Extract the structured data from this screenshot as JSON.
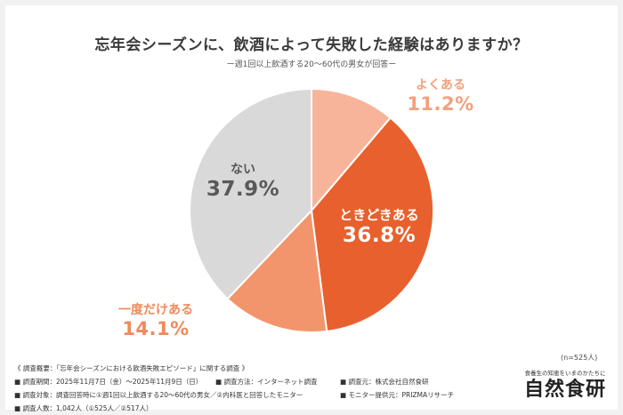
{
  "chart_data": {
    "type": "pie",
    "title": "忘年会シーズンに、飲酒によって失敗した経験はありますか？",
    "subtitle": "ー週1回以上飲酒する20〜60代の男女が回答ー",
    "slices": [
      {
        "label": "よくある",
        "value": 11.2,
        "value_text": "11.2%",
        "color": "#f8b49a"
      },
      {
        "label": "ときどきある",
        "value": 36.8,
        "value_text": "36.8%",
        "color": "#e8602e"
      },
      {
        "label": "一度だけある",
        "value": 14.1,
        "value_text": "14.1%",
        "color": "#f3956c"
      },
      {
        "label": "ない",
        "value": 37.9,
        "value_text": "37.9%",
        "color": "#d9d9d9"
      }
    ],
    "start": "12 o'clock",
    "direction": "clockwise",
    "sample_note": "(n=525人)"
  },
  "footer": {
    "overview": "《 調査概要：「忘年会シーズンにおける飲酒失敗エピソード」に関する調査 》",
    "period": "■ 調査期間：2025年11月7日（金）〜2025年11月9日（日）",
    "method": "■ 調査方法：インターネット調査",
    "source": "■ 調査元：株式会社自然食研",
    "target": "■ 調査対象：調査回答時に①週1回以上飲酒する20〜60代の男女／②内科医と回答したモニター",
    "provider": "■ モニター提供元：PRIZMAリサーチ",
    "count": "■ 調査人数：1,042人（①525人／②517人）"
  },
  "brand": {
    "tagline": "食養生の知恵をいまのかたちに",
    "logo": "自然食研"
  }
}
